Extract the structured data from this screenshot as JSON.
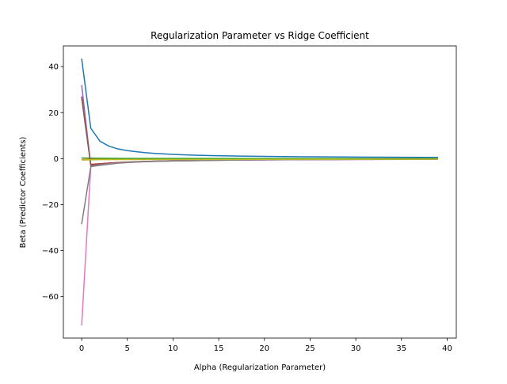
{
  "chart_data": {
    "type": "line",
    "title": "Regularization Parameter vs Ridge Coefficient",
    "xlabel": "Alpha (Regularization Parameter)",
    "ylabel": "Beta (Predictor Coefficients)",
    "xlim": [
      -2,
      41
    ],
    "ylim": [
      -78,
      49
    ],
    "xticks": [
      0,
      5,
      10,
      15,
      20,
      25,
      30,
      35,
      40
    ],
    "yticks": [
      -60,
      -40,
      -20,
      0,
      20,
      40
    ],
    "ytick_labels": [
      "−60",
      "−40",
      "−20",
      "0",
      "20",
      "40"
    ],
    "grid": false,
    "legend": null,
    "series": [
      {
        "color": "#1f77b4",
        "x": [
          0,
          1,
          2,
          3,
          4,
          5,
          6,
          7,
          8,
          9,
          10,
          12,
          14,
          16,
          18,
          20,
          25,
          30,
          35,
          39
        ],
        "values": [
          43.5,
          13.2,
          7.6,
          5.4,
          4.2,
          3.5,
          3.0,
          2.6,
          2.3,
          2.05,
          1.85,
          1.55,
          1.35,
          1.2,
          1.08,
          0.98,
          0.8,
          0.67,
          0.58,
          0.52
        ]
      },
      {
        "color": "#ff7f0e",
        "x": [
          0,
          1,
          2,
          5,
          10,
          20,
          30,
          39
        ],
        "values": [
          -0.4,
          -0.3,
          -0.3,
          -0.3,
          -0.25,
          -0.2,
          -0.2,
          -0.2
        ]
      },
      {
        "color": "#2ca02c",
        "x": [
          0,
          1,
          2,
          5,
          10,
          20,
          30,
          39
        ],
        "values": [
          0.3,
          0.2,
          0.15,
          0.1,
          0.08,
          0.05,
          0.04,
          0.03
        ]
      },
      {
        "color": "#d62728",
        "x": [
          0,
          1,
          2,
          3,
          4,
          5,
          7,
          10,
          15,
          20,
          30,
          39
        ],
        "values": [
          27.0,
          -2.5,
          -2.2,
          -1.9,
          -1.7,
          -1.5,
          -1.2,
          -0.9,
          -0.6,
          -0.45,
          -0.3,
          -0.25
        ]
      },
      {
        "color": "#9467bd",
        "x": [
          0,
          1,
          2,
          3,
          4,
          5,
          7,
          10,
          15,
          20,
          30,
          39
        ],
        "values": [
          32.0,
          -3.0,
          -2.5,
          -2.1,
          -1.8,
          -1.6,
          -1.3,
          -1.0,
          -0.7,
          -0.5,
          -0.35,
          -0.28
        ]
      },
      {
        "color": "#8c564b",
        "x": [
          0,
          1,
          2,
          3,
          4,
          5,
          7,
          10,
          15,
          20,
          30,
          39
        ],
        "values": [
          26.5,
          -2.8,
          -2.3,
          -2.0,
          -1.7,
          -1.5,
          -1.2,
          -0.9,
          -0.6,
          -0.45,
          -0.3,
          -0.25
        ]
      },
      {
        "color": "#e377c2",
        "x": [
          0,
          1,
          2,
          3,
          4,
          5,
          7,
          10,
          15,
          20,
          30,
          39
        ],
        "values": [
          -72.5,
          -3.5,
          -2.8,
          -2.3,
          -1.9,
          -1.7,
          -1.3,
          -1.0,
          -0.7,
          -0.5,
          -0.35,
          -0.28
        ]
      },
      {
        "color": "#7f7f7f",
        "x": [
          0,
          1,
          2,
          3,
          4,
          5,
          7,
          10,
          15,
          20,
          30,
          39
        ],
        "values": [
          -28.5,
          -3.5,
          -2.9,
          -2.4,
          -2.0,
          -1.7,
          -1.3,
          -1.0,
          -0.7,
          -0.5,
          -0.35,
          -0.28
        ]
      },
      {
        "color": "#bcbd22",
        "x": [
          0,
          1,
          2,
          5,
          10,
          20,
          30,
          39
        ],
        "values": [
          -0.6,
          -0.5,
          -0.45,
          -0.4,
          -0.35,
          -0.3,
          -0.25,
          -0.22
        ]
      }
    ]
  }
}
